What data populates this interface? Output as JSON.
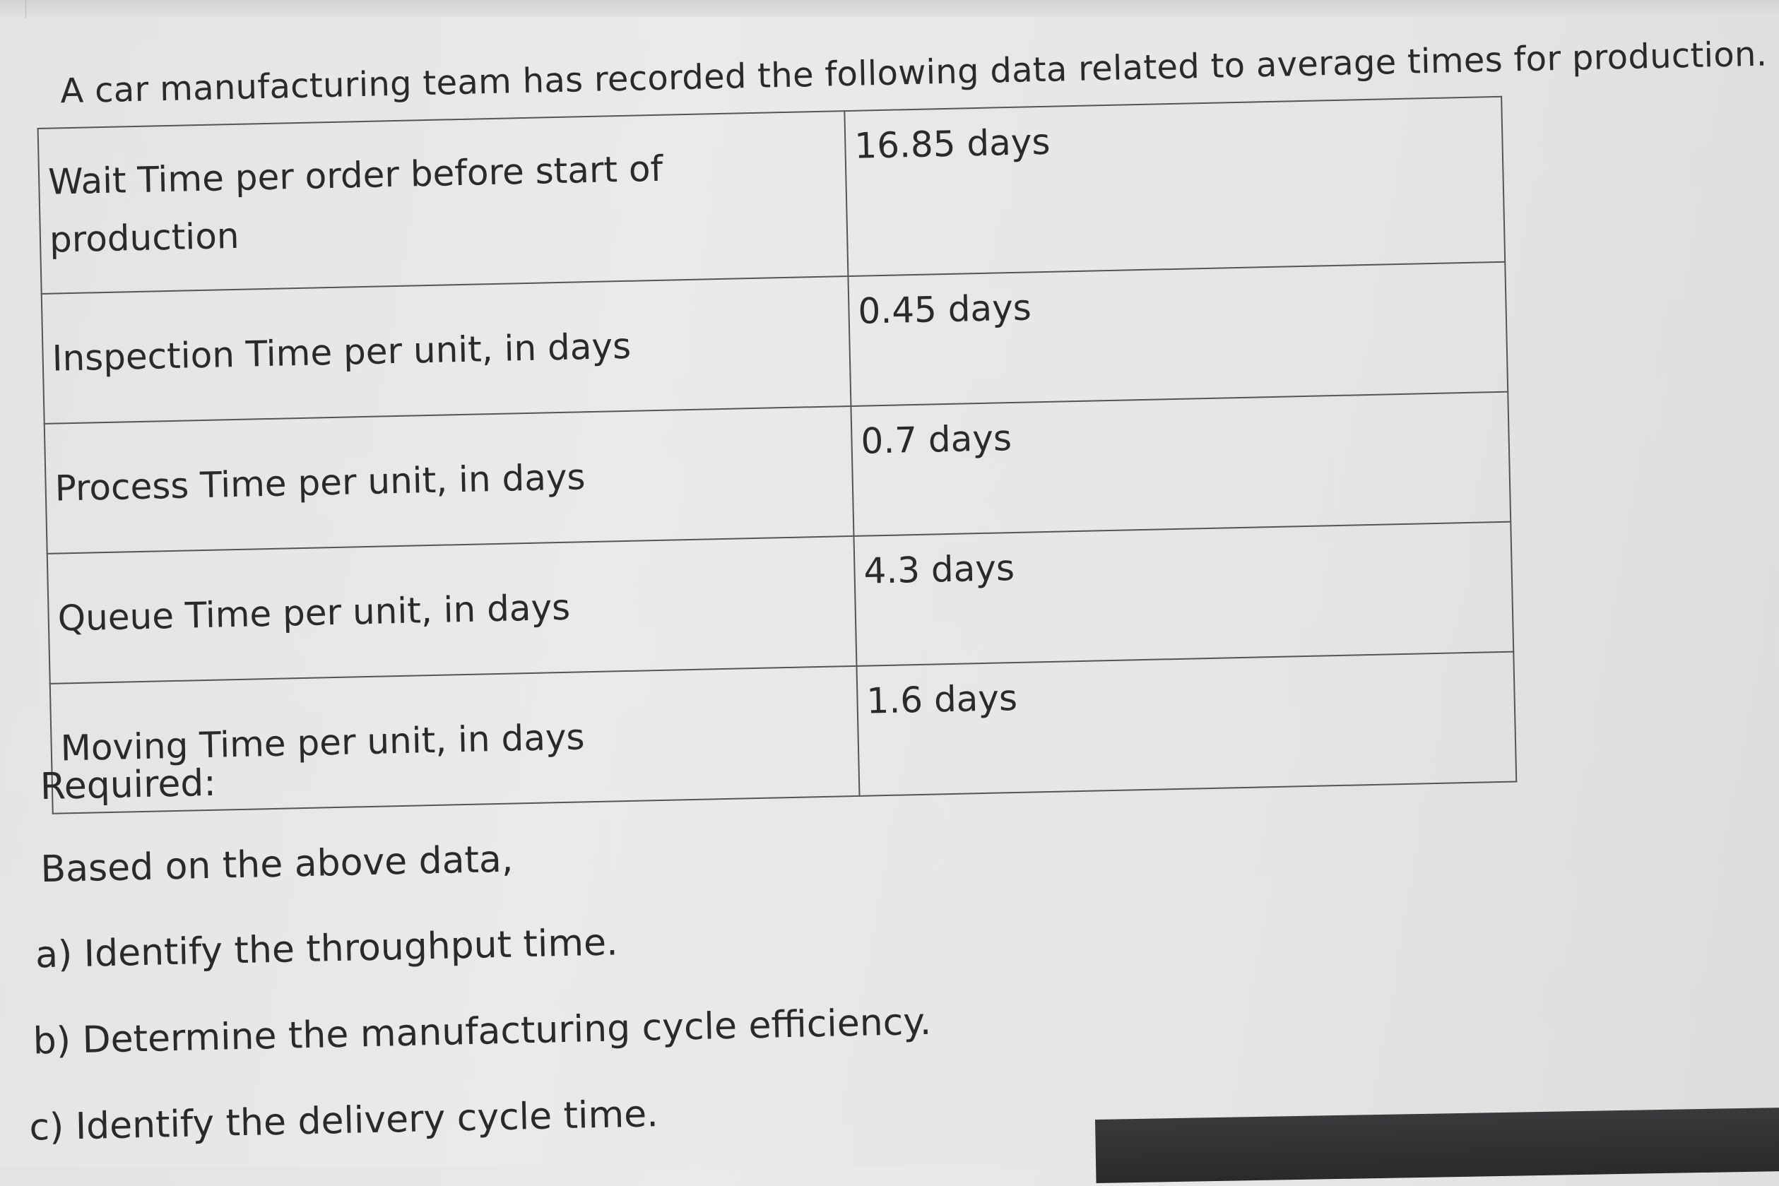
{
  "intro": "A car manufacturing team has recorded the following data related to average times for production.",
  "table": {
    "rows": [
      {
        "label": "Wait Time per order before start of production",
        "value": "16.85 days"
      },
      {
        "label": "Inspection Time per unit, in days",
        "value": "0.45 days"
      },
      {
        "label": "Process Time per unit, in days",
        "value": "0.7 days"
      },
      {
        "label": "Queue Time per unit, in days",
        "value": "4.3 days"
      },
      {
        "label": "Moving Time per unit, in days",
        "value": "1.6 days"
      }
    ]
  },
  "required": "Required:",
  "instruction": "Based on the above data,",
  "questions": [
    "a) Identify the throughput time.",
    "b) Determine the manufacturing cycle efficiency.",
    "c) Identify the delivery cycle time."
  ]
}
